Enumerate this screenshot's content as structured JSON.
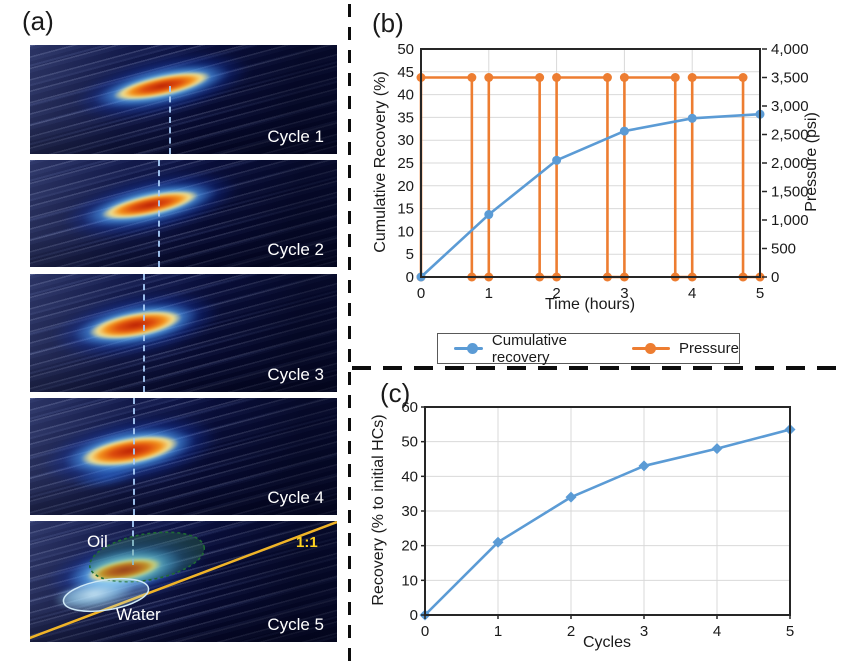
{
  "panels": {
    "a_label": "(a)",
    "b_label": "(b)",
    "c_label": "(c)"
  },
  "panel_a": {
    "cycles": [
      {
        "label": "Cycle 1"
      },
      {
        "label": "Cycle 2"
      },
      {
        "label": "Cycle 3"
      },
      {
        "label": "Cycle 4"
      },
      {
        "label": "Cycle 5"
      }
    ],
    "cycle5_annotations": {
      "oil": "Oil",
      "water": "Water",
      "ratio": "1:1"
    }
  },
  "chart_data": [
    {
      "panel": "b",
      "type": "line",
      "title": "",
      "xlabel": "Time (hours)",
      "ylabel": "Cumulative Recovery (%)",
      "ylabel_right": "Pressure (psi)",
      "xlim": [
        0,
        5
      ],
      "xticks": [
        0,
        1,
        2,
        3,
        4,
        5
      ],
      "ylim": [
        0,
        50
      ],
      "yticks": [
        0,
        5,
        10,
        15,
        20,
        25,
        30,
        35,
        40,
        45,
        50
      ],
      "ylim_right": [
        0,
        4000
      ],
      "yticks_right": [
        0,
        500,
        1000,
        1500,
        2000,
        2500,
        3000,
        3500,
        4000
      ],
      "grid": true,
      "legend_position": "bottom",
      "series": [
        {
          "name": "Cumulative recovery",
          "axis": "left",
          "color": "#5B9BD5",
          "marker": "circle",
          "points": [
            [
              0,
              0
            ],
            [
              1,
              13.7
            ],
            [
              2,
              25.6
            ],
            [
              3,
              32
            ],
            [
              4,
              34.8
            ],
            [
              5,
              35.7
            ]
          ]
        },
        {
          "name": "Pressure",
          "axis": "right",
          "color": "#ED7D31",
          "marker": "circle",
          "pressure_high_psi": 3500,
          "points": [
            [
              0,
              0
            ],
            [
              0,
              3500
            ],
            [
              0.75,
              3500
            ],
            [
              0.75,
              0
            ],
            [
              1,
              0
            ],
            [
              1,
              3500
            ],
            [
              1.75,
              3500
            ],
            [
              1.75,
              0
            ],
            [
              2,
              0
            ],
            [
              2,
              3500
            ],
            [
              2.75,
              3500
            ],
            [
              2.75,
              0
            ],
            [
              3,
              0
            ],
            [
              3,
              3500
            ],
            [
              3.75,
              3500
            ],
            [
              3.75,
              0
            ],
            [
              4,
              0
            ],
            [
              4,
              3500
            ],
            [
              4.75,
              3500
            ],
            [
              4.75,
              0
            ],
            [
              5,
              0
            ]
          ]
        }
      ]
    },
    {
      "panel": "c",
      "type": "line",
      "title": "",
      "xlabel": "Cycles",
      "ylabel": "Recovery (% to initial HCs)",
      "xlim": [
        0,
        5
      ],
      "xticks": [
        0,
        1,
        2,
        3,
        4,
        5
      ],
      "ylim": [
        0,
        60
      ],
      "yticks": [
        0,
        10,
        20,
        30,
        40,
        50,
        60
      ],
      "grid": true,
      "series": [
        {
          "name": "Recovery",
          "axis": "left",
          "color": "#5B9BD5",
          "marker": "diamond",
          "points": [
            [
              0,
              0
            ],
            [
              1,
              21
            ],
            [
              2,
              34
            ],
            [
              3,
              43
            ],
            [
              4,
              48
            ],
            [
              5,
              53.5
            ]
          ]
        }
      ]
    }
  ],
  "colors": {
    "recovery_blue": "#5B9BD5",
    "pressure_orange": "#ED7D31",
    "grid_gray": "#D9D9D9",
    "ratio_line_yellow": "#F0B428",
    "ratio_text_yellow": "#FFD21F"
  }
}
